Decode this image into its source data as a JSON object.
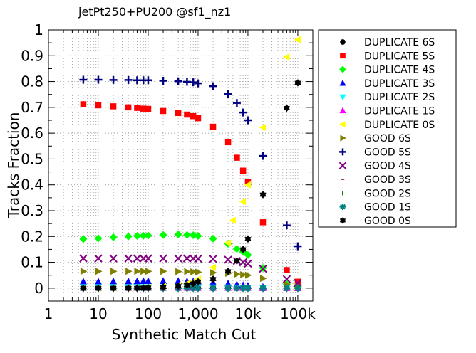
{
  "chart_data": {
    "type": "scatter",
    "title": "jetPt250+PU200 @sf1_nz1",
    "xlabel": "Synthetic Match Cut",
    "ylabel": "Tracks Fraction",
    "xscale": "log",
    "xlim": [
      1,
      200000
    ],
    "ylim": [
      -0.05,
      1.0
    ],
    "x_tick_values": [
      1,
      10,
      100,
      1000,
      10000,
      100000
    ],
    "x_tick_labels": [
      "1",
      "10",
      "100",
      "1,000",
      "10k",
      "100k"
    ],
    "y_tick_values": [
      0,
      0.1,
      0.2,
      0.3,
      0.4,
      0.5,
      0.6,
      0.7,
      0.8,
      0.9,
      1
    ],
    "y_tick_labels": [
      "0",
      "0.1",
      "0.2",
      "0.3",
      "0.4",
      "0.5",
      "0.6",
      "0.7",
      "0.8",
      "0.9",
      "1"
    ],
    "grid": true,
    "legend_position": "outside-right",
    "series": [
      {
        "name": "DUPLICATE 6S",
        "color": "#000000",
        "marker": "circle",
        "x": [
          5,
          10,
          20,
          40,
          60,
          80,
          100,
          200,
          400,
          600,
          800,
          1000,
          2000,
          4000,
          6000,
          8000,
          10000,
          20000,
          60000,
          100000
        ],
        "y": [
          0,
          0,
          0,
          0,
          0,
          0,
          0,
          0,
          0,
          0,
          0,
          0,
          0,
          0,
          0,
          0,
          0,
          0,
          0,
          0
        ]
      },
      {
        "name": "DUPLICATE 5S",
        "color": "#ff0000",
        "marker": "square",
        "x": [
          5,
          10,
          20,
          40,
          60,
          80,
          100,
          200,
          400,
          600,
          800,
          1000,
          2000,
          4000,
          6000,
          8000,
          10000,
          20000,
          60000,
          100000
        ],
        "y": [
          0.712,
          0.708,
          0.704,
          0.7,
          0.698,
          0.695,
          0.694,
          0.686,
          0.678,
          0.672,
          0.666,
          0.658,
          0.625,
          0.565,
          0.505,
          0.455,
          0.41,
          0.255,
          0.07,
          0.025
        ]
      },
      {
        "name": "DUPLICATE 4S",
        "color": "#00ff00",
        "marker": "diamond",
        "x": [
          5,
          10,
          20,
          40,
          60,
          80,
          100,
          200,
          400,
          600,
          800,
          1000,
          2000,
          4000,
          6000,
          8000,
          10000,
          20000,
          60000,
          100000
        ],
        "y": [
          0.19,
          0.193,
          0.197,
          0.2,
          0.202,
          0.203,
          0.204,
          0.206,
          0.208,
          0.206,
          0.205,
          0.202,
          0.192,
          0.172,
          0.152,
          0.14,
          0.128,
          0.078,
          0.015,
          0.005
        ]
      },
      {
        "name": "DUPLICATE 3S",
        "color": "#0000ff",
        "marker": "triangle-up",
        "x": [
          5,
          10,
          20,
          40,
          60,
          80,
          100,
          200,
          400,
          600,
          800,
          1000,
          2000,
          4000,
          6000,
          8000,
          10000,
          20000,
          60000,
          100000
        ],
        "y": [
          0.025,
          0.025,
          0.026,
          0.026,
          0.026,
          0.027,
          0.027,
          0.027,
          0.027,
          0.026,
          0.026,
          0.025,
          0.022,
          0.018,
          0.014,
          0.011,
          0.009,
          0.004,
          0.001,
          0.0
        ]
      },
      {
        "name": "DUPLICATE 2S",
        "color": "#00ffff",
        "marker": "triangle-down",
        "x": [
          5,
          10,
          20,
          40,
          60,
          80,
          100,
          200,
          400,
          600,
          800,
          1000,
          2000,
          4000,
          6000,
          8000,
          10000,
          20000,
          60000,
          100000
        ],
        "y": [
          0.004,
          0.004,
          0.004,
          0.004,
          0.004,
          0.004,
          0.004,
          0.004,
          0.004,
          0.004,
          0.004,
          0.004,
          0.003,
          0.003,
          0.002,
          0.002,
          0.002,
          0.001,
          0.0,
          0.0
        ]
      },
      {
        "name": "DUPLICATE 1S",
        "color": "#ff00ff",
        "marker": "triangle-up",
        "x": [
          5,
          10,
          20,
          40,
          60,
          80,
          100,
          200,
          400,
          600,
          800,
          1000,
          2000,
          4000,
          6000,
          8000,
          10000,
          20000,
          60000,
          100000
        ],
        "y": [
          0.001,
          0.001,
          0.001,
          0.001,
          0.001,
          0.001,
          0.001,
          0.001,
          0.001,
          0.001,
          0.001,
          0.001,
          0.001,
          0.001,
          0.001,
          0.001,
          0.001,
          0.0,
          0.0,
          0.0
        ]
      },
      {
        "name": "DUPLICATE 0S",
        "color": "#ffff00",
        "marker": "triangle-left",
        "x": [
          5,
          10,
          20,
          40,
          60,
          80,
          100,
          200,
          400,
          600,
          800,
          1000,
          2000,
          4000,
          5000,
          8000,
          10000,
          20000,
          60000,
          100000
        ],
        "y": [
          0.0,
          0.0,
          0.001,
          0.001,
          0.001,
          0.002,
          0.003,
          0.006,
          0.012,
          0.018,
          0.025,
          0.035,
          0.08,
          0.175,
          0.262,
          0.335,
          0.4,
          0.622,
          0.895,
          0.962
        ]
      },
      {
        "name": "GOOD 6S",
        "color": "#808000",
        "marker": "triangle-right",
        "x": [
          5,
          10,
          20,
          40,
          60,
          80,
          100,
          200,
          400,
          600,
          800,
          1000,
          2000,
          4000,
          6000,
          8000,
          10000,
          20000,
          60000,
          100000
        ],
        "y": [
          0.065,
          0.065,
          0.065,
          0.065,
          0.065,
          0.065,
          0.065,
          0.065,
          0.064,
          0.064,
          0.063,
          0.062,
          0.06,
          0.057,
          0.054,
          0.052,
          0.05,
          0.038,
          0.015,
          0.007
        ]
      },
      {
        "name": "GOOD 5S",
        "color": "#000080",
        "marker": "plus",
        "x": [
          5,
          10,
          20,
          40,
          60,
          80,
          100,
          200,
          400,
          600,
          800,
          1000,
          2000,
          4000,
          6000,
          8000,
          10000,
          20000,
          60000,
          100000
        ],
        "y": [
          0.807,
          0.807,
          0.806,
          0.806,
          0.805,
          0.805,
          0.805,
          0.803,
          0.801,
          0.799,
          0.797,
          0.793,
          0.782,
          0.752,
          0.717,
          0.68,
          0.65,
          0.512,
          0.243,
          0.162
        ]
      },
      {
        "name": "GOOD 4S",
        "color": "#800080",
        "marker": "x",
        "x": [
          5,
          10,
          20,
          40,
          60,
          80,
          100,
          200,
          400,
          600,
          800,
          1000,
          2000,
          4000,
          6000,
          8000,
          10000,
          20000,
          60000,
          100000
        ],
        "y": [
          0.115,
          0.115,
          0.115,
          0.115,
          0.115,
          0.115,
          0.115,
          0.115,
          0.115,
          0.115,
          0.115,
          0.114,
          0.113,
          0.11,
          0.105,
          0.1,
          0.095,
          0.075,
          0.035,
          0.02
        ]
      },
      {
        "name": "GOOD 3S",
        "color": "#800000",
        "marker": "dash",
        "x": [
          5,
          10,
          20,
          40,
          60,
          80,
          100,
          200,
          400,
          600,
          800,
          1000,
          2000,
          4000,
          6000,
          8000,
          10000,
          20000,
          60000,
          100000
        ],
        "y": [
          0.002,
          0.002,
          0.002,
          0.002,
          0.002,
          0.002,
          0.002,
          0.002,
          0.002,
          0.002,
          0.002,
          0.002,
          0.002,
          0.001,
          0.001,
          0.001,
          0.001,
          0.001,
          0.0,
          0.0
        ]
      },
      {
        "name": "GOOD 2S",
        "color": "#008000",
        "marker": "vbar",
        "x": [
          5,
          10,
          20,
          40,
          60,
          80,
          100,
          200,
          400,
          600,
          800,
          1000,
          2000,
          4000,
          6000,
          8000,
          10000,
          20000,
          60000,
          100000
        ],
        "y": [
          0.001,
          0.001,
          0.001,
          0.001,
          0.001,
          0.001,
          0.001,
          0.001,
          0.001,
          0.001,
          0.001,
          0.001,
          0.001,
          0.001,
          0.001,
          0.001,
          0.001,
          0.0,
          0.0,
          0.0
        ]
      },
      {
        "name": "GOOD 1S",
        "color": "#008080",
        "marker": "asterisk",
        "x": [
          5,
          10,
          20,
          40,
          60,
          80,
          100,
          200,
          400,
          600,
          800,
          1000,
          2000,
          4000,
          6000,
          8000,
          10000,
          20000,
          60000,
          100000
        ],
        "y": [
          0.0,
          0.0,
          0.0,
          0.0,
          0.0,
          0.0,
          0.0,
          0.0,
          0.0,
          0.0,
          0.0,
          0.0,
          0.0,
          0.0,
          0.0,
          0.0,
          0.0,
          0.0,
          0.0,
          0.0
        ]
      },
      {
        "name": "GOOD 0S",
        "color": "#000000",
        "marker": "star",
        "x": [
          5,
          10,
          20,
          40,
          60,
          80,
          100,
          200,
          400,
          600,
          800,
          1000,
          2000,
          4000,
          6000,
          8000,
          10000,
          20000,
          60000,
          100000
        ],
        "y": [
          0.0,
          0.0,
          0.0,
          0.0,
          0.0,
          0.001,
          0.002,
          0.004,
          0.008,
          0.012,
          0.018,
          0.025,
          0.035,
          0.065,
          0.105,
          0.15,
          0.19,
          0.362,
          0.697,
          0.795
        ]
      }
    ]
  }
}
